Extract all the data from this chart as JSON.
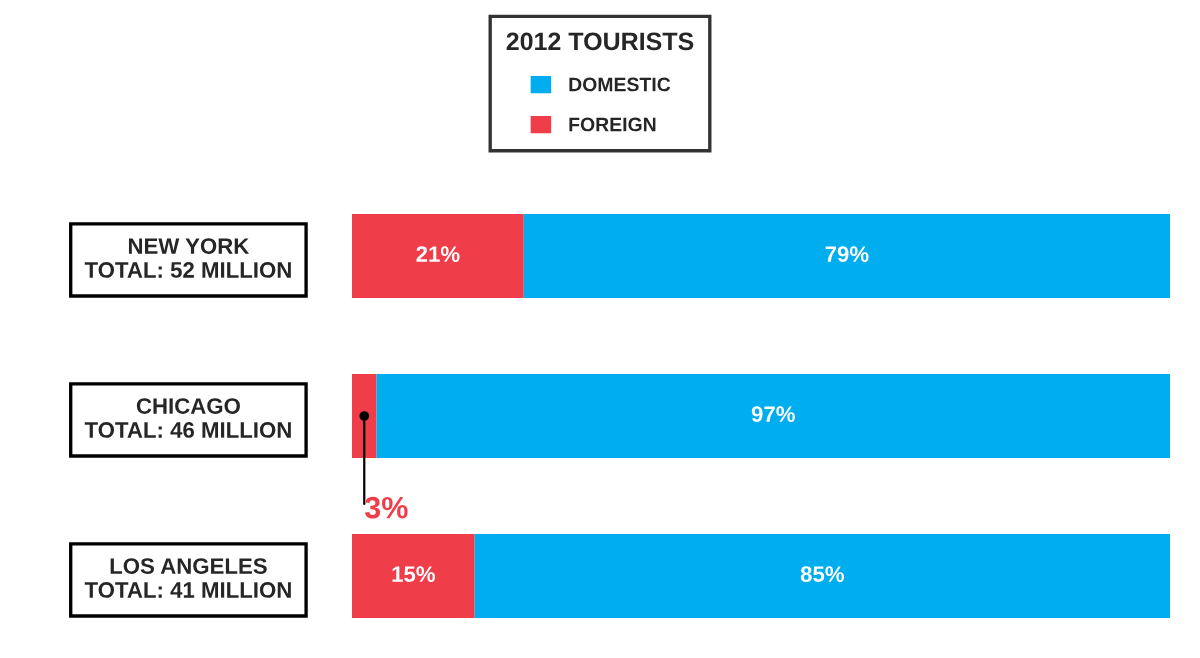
{
  "chart_data": {
    "type": "bar",
    "orientation": "horizontal",
    "stacked": true,
    "legend_title": "2012 TOURISTS",
    "legend": "top",
    "categories": [
      "NEW YORK\nTOTAL: 52 MILLION",
      "CHICAGO\nTOTAL: 46 MILLION",
      "LOS ANGELES\nTOTAL: 41 MILLION"
    ],
    "series": [
      {
        "name": "FOREIGN",
        "color": "#ef3e4a",
        "values": [
          21,
          3,
          15
        ],
        "value_labels": [
          "21%",
          "3%",
          "15%"
        ]
      },
      {
        "name": "DOMESTIC",
        "color": "#00aeef",
        "values": [
          79,
          97,
          85
        ],
        "value_labels": [
          "79%",
          "97%",
          "85%"
        ]
      }
    ]
  }
}
